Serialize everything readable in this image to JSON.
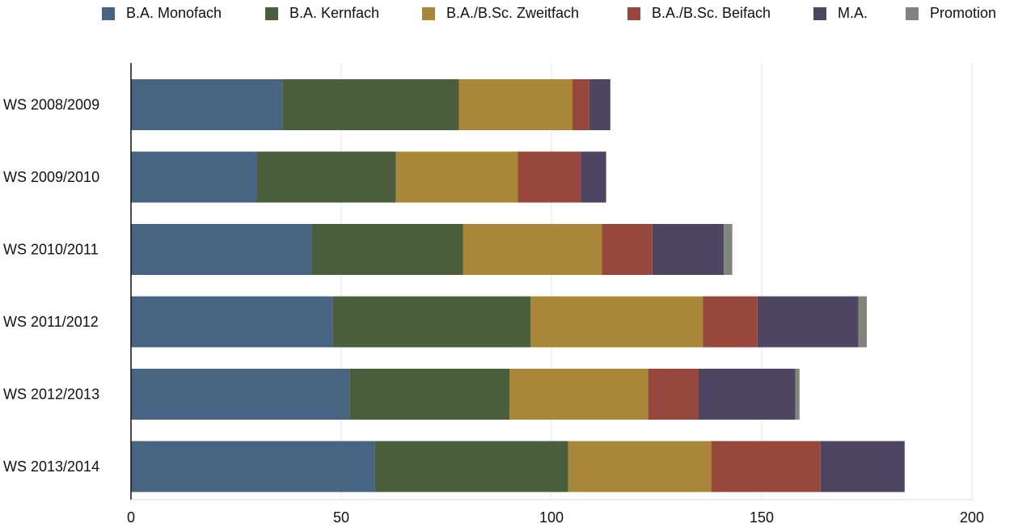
{
  "chart_data": {
    "type": "bar",
    "orientation": "horizontal",
    "stacked": true,
    "title": "",
    "xlabel": "",
    "ylabel": "",
    "categories": [
      "WS 2008/2009",
      "WS 2009/2010",
      "WS 2010/2011",
      "WS 2011/2012",
      "WS 2012/2013",
      "WS 2013/2014"
    ],
    "xlim": [
      0,
      200
    ],
    "xticks": [
      0,
      50,
      100,
      150,
      200
    ],
    "grid": true,
    "legend_position": "top",
    "series": [
      {
        "name": "B.A. Monofach",
        "color": "#476482",
        "values": [
          36,
          30,
          43,
          48,
          52,
          58
        ]
      },
      {
        "name": "B.A. Kernfach",
        "color": "#4a5e3c",
        "values": [
          42,
          33,
          36,
          47,
          38,
          46
        ]
      },
      {
        "name": "B.A./B.Sc. Zweitfach",
        "color": "#a88838",
        "values": [
          27,
          29,
          33,
          41,
          33,
          34
        ]
      },
      {
        "name": "B.A./B.Sc. Beifach",
        "color": "#97473b",
        "values": [
          4,
          15,
          12,
          13,
          12,
          26
        ]
      },
      {
        "name": "M.A.",
        "color": "#4e4562",
        "values": [
          5,
          6,
          17,
          24,
          23,
          20
        ]
      },
      {
        "name": "Promotion",
        "color": "#7f877c",
        "values": [
          0,
          0,
          2,
          2,
          1,
          0
        ]
      }
    ]
  }
}
